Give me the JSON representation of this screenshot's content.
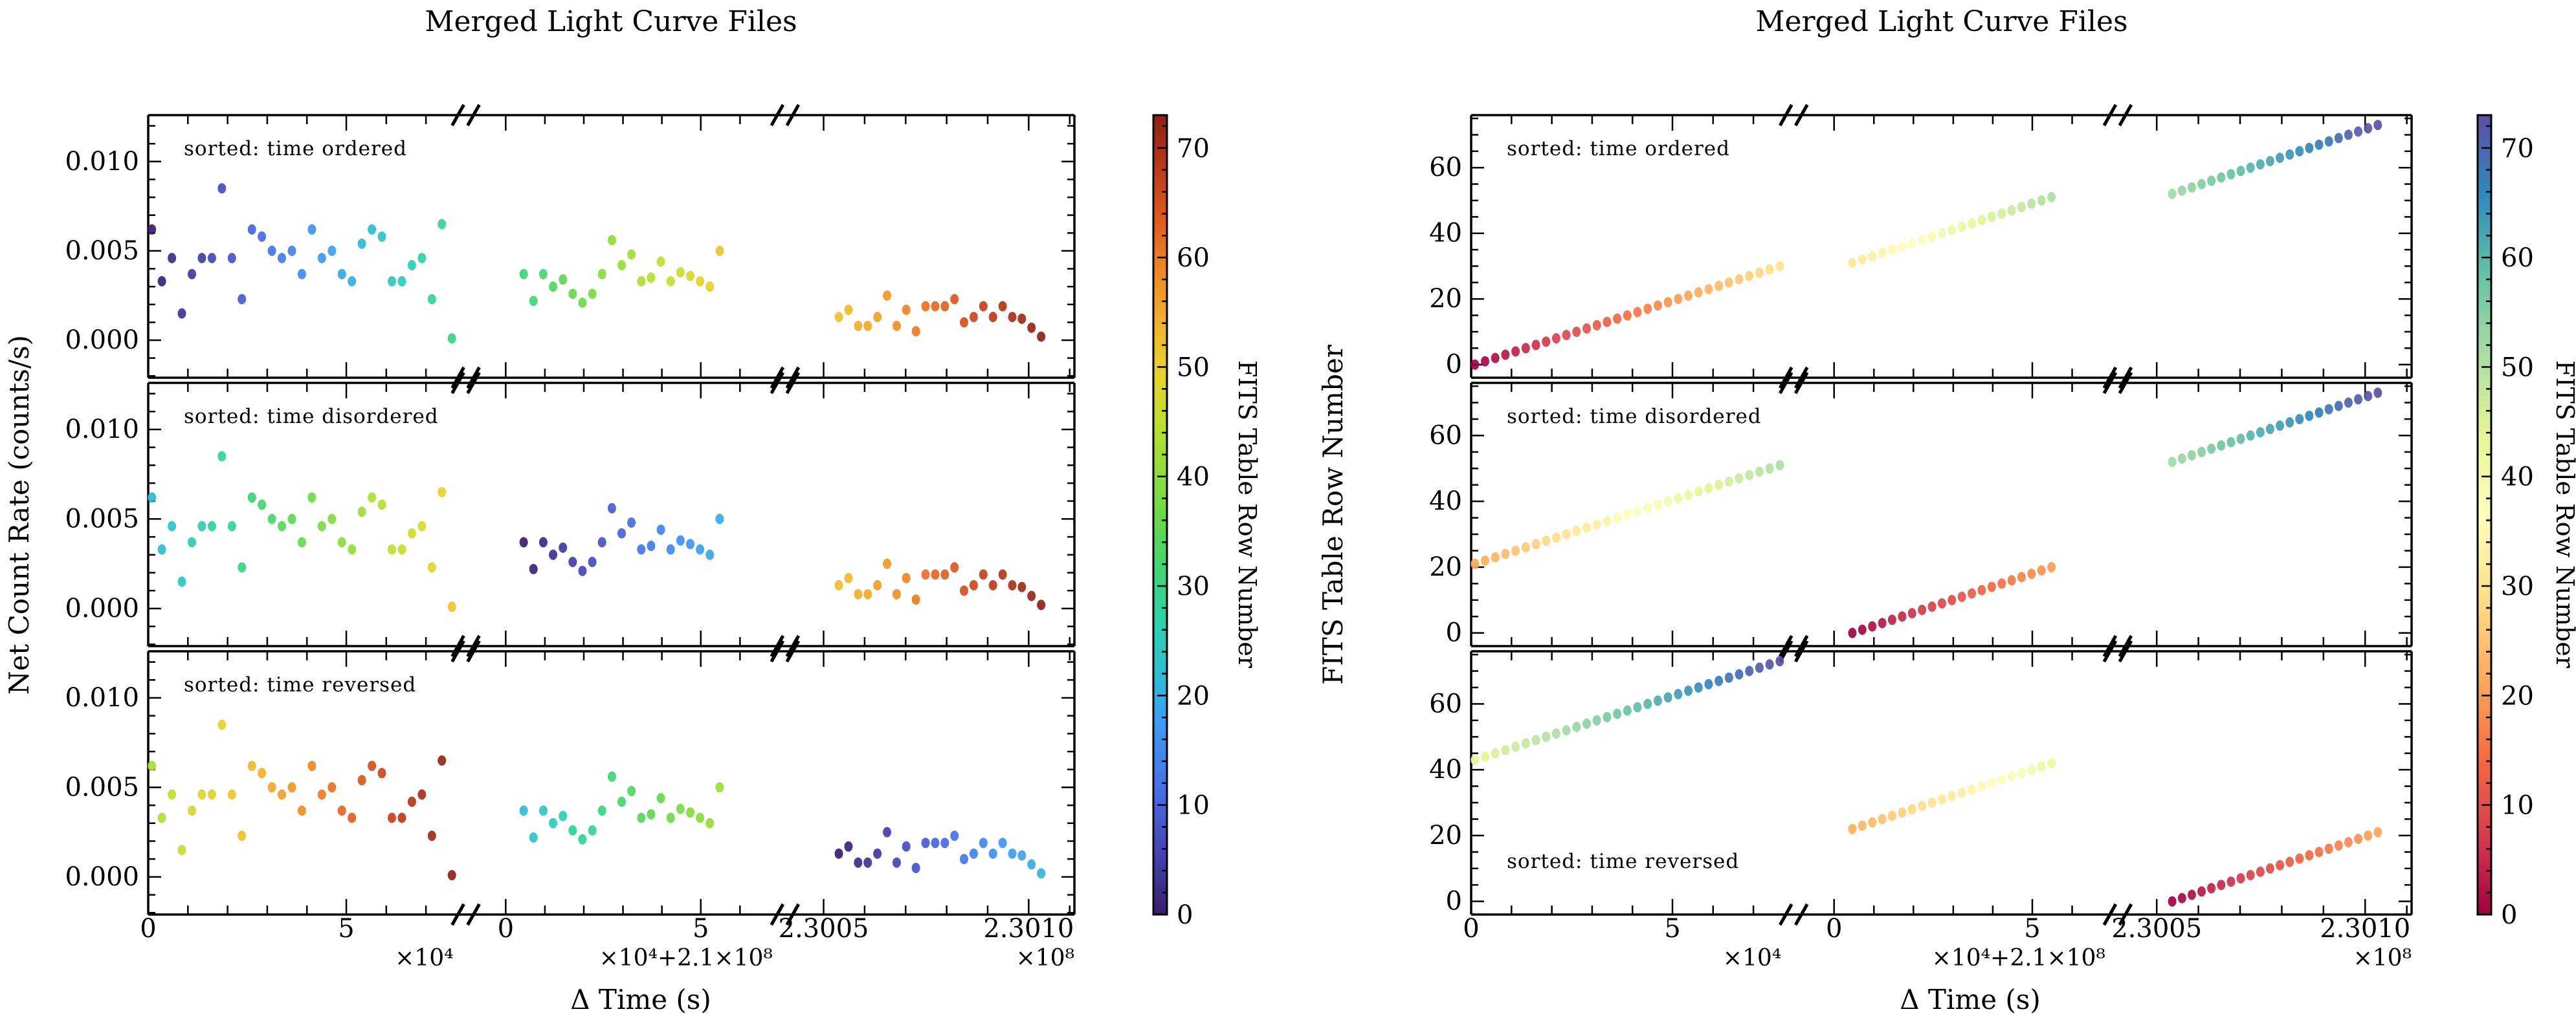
{
  "page_background": "#ffffff",
  "colormaps": {
    "turbo": [
      [
        0.0,
        "#381d6c"
      ],
      [
        0.08,
        "#4545b4"
      ],
      [
        0.16,
        "#4672e8"
      ],
      [
        0.24,
        "#3f9bf2"
      ],
      [
        0.3,
        "#2fbdd4"
      ],
      [
        0.36,
        "#2ecfae"
      ],
      [
        0.42,
        "#3bd47e"
      ],
      [
        0.48,
        "#5ed754"
      ],
      [
        0.55,
        "#8edc3c"
      ],
      [
        0.62,
        "#c2dd31"
      ],
      [
        0.68,
        "#e8d22e"
      ],
      [
        0.74,
        "#f2b02c"
      ],
      [
        0.8,
        "#f08b28"
      ],
      [
        0.86,
        "#e26122"
      ],
      [
        0.92,
        "#c2401c"
      ],
      [
        1.0,
        "#8c2217"
      ]
    ],
    "spectral": [
      [
        0.0,
        "#9e0142"
      ],
      [
        0.1,
        "#d53e4f"
      ],
      [
        0.2,
        "#f46d43"
      ],
      [
        0.3,
        "#fdae61"
      ],
      [
        0.4,
        "#fee08b"
      ],
      [
        0.5,
        "#ffffbf"
      ],
      [
        0.6,
        "#e6f598"
      ],
      [
        0.7,
        "#abdda4"
      ],
      [
        0.8,
        "#66c2a5"
      ],
      [
        0.9,
        "#3288bd"
      ],
      [
        1.0,
        "#5e4fa2"
      ]
    ]
  },
  "time_segments": [
    {
      "name": "segment-1",
      "n_points": 31,
      "f_start": 0.012,
      "f_end": 0.995,
      "weight": 0.348,
      "ticks": [
        {
          "f": 0.0,
          "label": "0"
        },
        {
          "f": 0.649,
          "label": "5"
        }
      ],
      "minor_f": [
        0.13,
        0.26,
        0.39,
        0.52,
        0.78,
        0.91
      ],
      "offset_label": "×10⁴"
    },
    {
      "name": "segment-2",
      "n_points": 21,
      "f_start": 0.155,
      "f_end": 0.82,
      "weight": 0.336,
      "ticks": [
        {
          "f": 0.094,
          "label": "0"
        },
        {
          "f": 0.756,
          "label": "5"
        }
      ],
      "minor_f": [
        0.227,
        0.359,
        0.492,
        0.624,
        0.889
      ],
      "offset_label": "×10⁴+2.1×10⁸"
    },
    {
      "name": "segment-3",
      "n_points": 22,
      "f_start": 0.15,
      "f_end": 0.88,
      "weight": 0.316,
      "ticks": [
        {
          "f": 0.095,
          "label": "2.3005"
        },
        {
          "f": 0.835,
          "label": "2.3010"
        }
      ],
      "minor_f": [
        0.243,
        0.391,
        0.539,
        0.687,
        0.983
      ],
      "offset_label": "×10⁸"
    }
  ],
  "net_count_rates": [
    [
      0.0062,
      0.0033,
      0.0046,
      0.0015,
      0.0037,
      0.0046,
      0.0046,
      0.0085,
      0.0046,
      0.0023,
      0.0062,
      0.0058,
      0.005,
      0.0046,
      0.005,
      0.0037,
      0.0062,
      0.0046,
      0.005,
      0.0037,
      0.0033,
      0.0054,
      0.0062,
      0.0058,
      0.0033,
      0.0033,
      0.0042,
      0.0046,
      0.0023,
      0.0065,
      0.0001
    ],
    [
      0.0037,
      0.0022,
      0.0037,
      0.003,
      0.0034,
      0.0026,
      0.0021,
      0.0026,
      0.0037,
      0.0056,
      0.0042,
      0.0048,
      0.0033,
      0.0035,
      0.0044,
      0.0033,
      0.0038,
      0.0036,
      0.0033,
      0.003,
      0.005
    ],
    [
      0.0013,
      0.0017,
      0.0008,
      0.0008,
      0.0013,
      0.0025,
      0.0008,
      0.0017,
      0.0005,
      0.0019,
      0.0019,
      0.0019,
      0.0023,
      0.001,
      0.0013,
      0.0019,
      0.0013,
      0.0019,
      0.0013,
      0.0012,
      0.0007,
      0.0002
    ]
  ],
  "sort_orders": [
    {
      "label": "sorted: time ordered",
      "row_start_per_segment": [
        0,
        31,
        52
      ]
    },
    {
      "label": "sorted: time disordered",
      "row_start_per_segment": [
        21,
        0,
        52
      ]
    },
    {
      "label": "sorted: time reversed",
      "row_start_per_segment": [
        43,
        22,
        0
      ]
    }
  ],
  "chart_data": [
    {
      "type": "scatter",
      "title": "Merged Light Curve Files",
      "xlabel": "Δ Time (s)",
      "ylabel": "Net Count Rate (counts/s)",
      "y_mode": "rate",
      "ylim": [
        -0.0021,
        0.0126
      ],
      "yticks": [
        {
          "v": 0.0,
          "label": "0.000"
        },
        {
          "v": 0.005,
          "label": "0.005"
        },
        {
          "v": 0.01,
          "label": "0.010"
        }
      ],
      "y_minor_step": 0.001,
      "colormap": "turbo",
      "colorbar": {
        "label": "FITS Table Row Number",
        "vmin": 0,
        "vmax": 73,
        "ticks": [
          0,
          10,
          20,
          30,
          40,
          50,
          60,
          70
        ],
        "minor_step": 2
      },
      "panel_label_pos": [
        "top-left",
        "top-left",
        "top-left"
      ],
      "x_tick_labels": [
        "0",
        "5",
        "0",
        "5",
        "2.3005",
        "2.3010"
      ],
      "x_offset_labels": [
        "×10⁴",
        "×10⁴+2.1×10⁸",
        "×10⁸"
      ]
    },
    {
      "type": "scatter",
      "title": "Merged Light Curve Files",
      "xlabel": "Δ Time (s)",
      "ylabel": "FITS Table Row Number",
      "y_mode": "row",
      "ylim": [
        -4,
        76
      ],
      "yticks": [
        {
          "v": 0,
          "label": "0"
        },
        {
          "v": 20,
          "label": "20"
        },
        {
          "v": 40,
          "label": "40"
        },
        {
          "v": 60,
          "label": "60"
        }
      ],
      "y_minor_step": 5,
      "colormap": "spectral",
      "colorbar": {
        "label": "FITS Table Row Number",
        "vmin": 0,
        "vmax": 73,
        "ticks": [
          0,
          10,
          20,
          30,
          40,
          50,
          60,
          70
        ],
        "minor_step": 2
      },
      "panel_label_pos": [
        "top-left",
        "top-left",
        "bottom-left"
      ],
      "x_tick_labels": [
        "0",
        "5",
        "0",
        "5",
        "2.3005",
        "2.3010"
      ],
      "x_offset_labels": [
        "×10⁴",
        "×10⁴+2.1×10⁸",
        "×10⁸"
      ]
    }
  ]
}
